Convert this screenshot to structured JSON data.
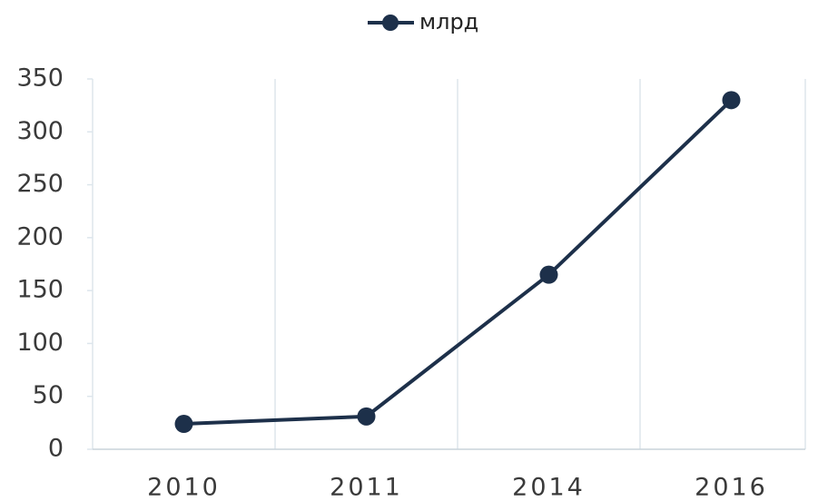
{
  "chart_data": {
    "type": "line",
    "categories": [
      "2010",
      "2011",
      "2014",
      "2016"
    ],
    "series": [
      {
        "name": "млрд",
        "color": "#1d304a",
        "values": [
          24,
          31,
          165,
          330
        ]
      }
    ],
    "ylim": [
      0,
      350
    ],
    "yticks": [
      0,
      50,
      100,
      150,
      200,
      250,
      300,
      350
    ],
    "grid": true,
    "legend": "top"
  }
}
